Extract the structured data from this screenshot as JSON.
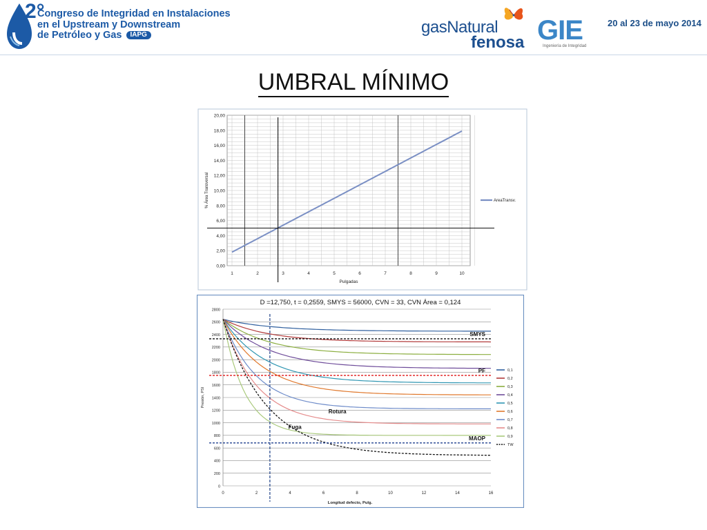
{
  "header": {
    "logo_number": "2°",
    "congress_lines": [
      "Congreso de Integridad en Instalaciones",
      "en el Upstream y Downstream",
      "de Petróleo y Gas"
    ],
    "iapg_badge": "IAPG",
    "sponsor_line1": "gasNatural",
    "sponsor_line2": "fenosa",
    "gie_logo": "GIE",
    "gie_subtitle": "Ingeniería de Integridad",
    "dates": "20 al 23 de mayo 2014"
  },
  "slide": {
    "title": "UMBRAL MÍNIMO"
  },
  "chart_data": [
    {
      "type": "line",
      "title": "",
      "xlabel": "Pulgadas",
      "ylabel": "% Área Transversal",
      "xlim": [
        1,
        10
      ],
      "ylim": [
        0,
        20
      ],
      "xticks": [
        "1",
        "2",
        "3",
        "4",
        "5",
        "6",
        "7",
        "8",
        "9",
        "10"
      ],
      "yticks": [
        "0,00",
        "2,00",
        "4,00",
        "6,00",
        "8,00",
        "10,00",
        "12,00",
        "14,00",
        "16,00",
        "18,00",
        "20,00"
      ],
      "series": [
        {
          "name": "AreaTransv.",
          "x": [
            1,
            10
          ],
          "y": [
            1.8,
            17.9
          ],
          "color": "#7a8fc4"
        }
      ],
      "threshold_y": 5,
      "marker_x": 2.8,
      "legend_position": "right",
      "grid": true
    },
    {
      "type": "line",
      "title": "D =12,750,  t = 0,2559,  SMYS = 56000,  CVN = 33,  CVN Área = 0,124",
      "xlabel": "Longitud defecto, Pulg.",
      "ylabel": "Presión, PSI",
      "xlim": [
        0,
        16
      ],
      "ylim": [
        0,
        2800
      ],
      "xticks": [
        "0",
        "2",
        "4",
        "6",
        "8",
        "10",
        "12",
        "14",
        "16"
      ],
      "yticks": [
        "0",
        "200",
        "400",
        "600",
        "800",
        "1000",
        "1200",
        "1400",
        "1600",
        "1800",
        "2000",
        "2200",
        "2400",
        "2600",
        "2800"
      ],
      "series": [
        {
          "name": "0,1",
          "start": 2640,
          "end": 2450,
          "decay": 3.0,
          "color": "#2f5f9e"
        },
        {
          "name": "0,2",
          "start": 2640,
          "end": 2280,
          "decay": 2.7,
          "color": "#b23b3b"
        },
        {
          "name": "0,3",
          "start": 2640,
          "end": 2080,
          "decay": 2.7,
          "color": "#8bae3f"
        },
        {
          "name": "0,4",
          "start": 2640,
          "end": 1860,
          "decay": 2.8,
          "color": "#6e4c9a"
        },
        {
          "name": "0,5",
          "start": 2640,
          "end": 1630,
          "decay": 2.5,
          "color": "#2f96b2"
        },
        {
          "name": "0,6",
          "start": 2640,
          "end": 1440,
          "decay": 2.4,
          "color": "#e0782c"
        },
        {
          "name": "0,7",
          "start": 2640,
          "end": 1220,
          "decay": 2.0,
          "color": "#6d8bc9"
        },
        {
          "name": "0,8",
          "start": 2640,
          "end": 980,
          "decay": 2.0,
          "color": "#e58b8b"
        },
        {
          "name": "0,9",
          "start": 2640,
          "end": 800,
          "decay": 1.3,
          "color": "#a9c97c"
        },
        {
          "name": "TW",
          "start": 2640,
          "end": 480,
          "decay": 2.6,
          "color": "#111111",
          "dashed": true
        }
      ],
      "reference_lines": [
        {
          "label": "SMYS",
          "y": 2330,
          "color": "#111111"
        },
        {
          "label": "PF",
          "y": 1750,
          "color": "#e32a2a"
        },
        {
          "label": "MAOP",
          "y": 680,
          "color": "#1f3f8f"
        }
      ],
      "marker_x": 2.8,
      "annotations": [
        {
          "text": "Rotura",
          "x": 6.3,
          "y": 1150
        },
        {
          "text": "Fuga",
          "x": 3.9,
          "y": 900
        }
      ],
      "legend_position": "right",
      "grid": true
    }
  ]
}
